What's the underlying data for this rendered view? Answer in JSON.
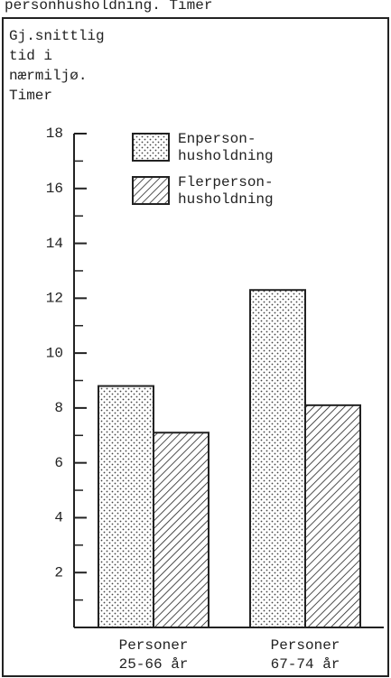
{
  "chart_data": {
    "type": "bar",
    "caption": "personhusholdning. Timer",
    "ylabel": [
      "Gj.snittlig",
      "tid i",
      "nærmiljø.",
      "Timer"
    ],
    "categories": [
      [
        "Personer",
        "25-66 år"
      ],
      [
        "Personer",
        "67-74 år"
      ]
    ],
    "series": [
      {
        "name": [
          "Enperson-",
          "husholdning"
        ],
        "pattern": "dots",
        "values": [
          8.8,
          12.3
        ]
      },
      {
        "name": [
          "Flerperson-",
          "husholdning"
        ],
        "pattern": "hatch",
        "values": [
          7.1,
          8.1
        ]
      }
    ],
    "ylim": [
      0,
      18
    ],
    "yticks": [
      2,
      4,
      6,
      8,
      10,
      12,
      14,
      16,
      18
    ],
    "yminorticks": [
      1,
      3,
      5,
      7,
      9,
      11,
      13,
      15,
      17
    ],
    "color": "#222"
  }
}
